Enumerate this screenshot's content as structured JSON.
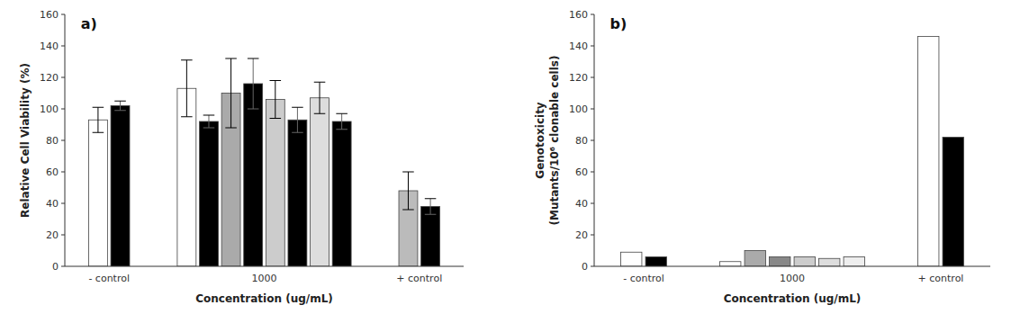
{
  "chart_data": [
    {
      "type": "bar",
      "title": "a)",
      "ylabel": "Relative Cell Viability (%)",
      "xlabel": "Concentration (ug/mL)",
      "categories": [
        "- control",
        "1000",
        "+ control"
      ],
      "values": [
        [
          93,
          102
        ],
        [
          113,
          92,
          110,
          116,
          106,
          93,
          107,
          92
        ],
        [
          48,
          38
        ]
      ],
      "errors": [
        [
          8,
          3
        ],
        [
          18,
          4,
          22,
          16,
          12,
          8,
          10,
          5
        ],
        [
          12,
          5
        ]
      ],
      "colors": [
        [
          "white",
          "black"
        ],
        [
          "white",
          "black",
          "#aaaaaa",
          "black",
          "#cccccc",
          "black",
          "#dddddd",
          "black"
        ],
        [
          "#bbbbbb",
          "black"
        ]
      ],
      "ylim": [
        0,
        160
      ],
      "yticks": [
        0,
        20,
        40,
        60,
        80,
        100,
        120,
        140,
        160
      ],
      "grid": false
    },
    {
      "type": "bar",
      "title": "b)",
      "ylabel": [
        "Genotoxicity",
        "(Mutants/10⁶ clonable cells)"
      ],
      "xlabel": "Concentration (ug/mL)",
      "categories": [
        "- control",
        "1000",
        "+ control"
      ],
      "values": [
        [
          9,
          6
        ],
        [
          3,
          10,
          6,
          6,
          5,
          6
        ],
        [
          146,
          82
        ]
      ],
      "colors": [
        [
          "white",
          "black"
        ],
        [
          "white",
          "#aaaaaa",
          "#888888",
          "#cccccc",
          "#dddddd",
          "#eeeeee"
        ],
        [
          "white",
          "black"
        ]
      ],
      "ylim": [
        0,
        160
      ],
      "yticks": [
        0,
        20,
        40,
        60,
        80,
        100,
        120,
        140,
        160
      ],
      "grid": false
    }
  ]
}
